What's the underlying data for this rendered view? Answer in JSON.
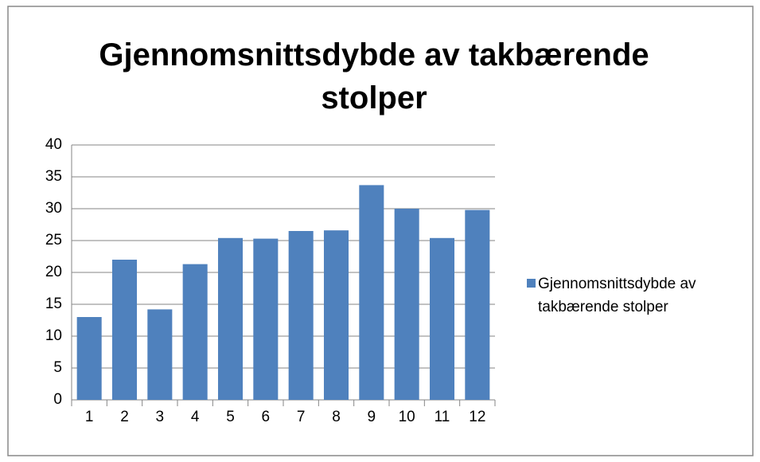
{
  "chart_data": {
    "type": "bar",
    "title": "Gjennomsnittsdybde av takbærende stolper",
    "categories": [
      "1",
      "2",
      "3",
      "4",
      "5",
      "6",
      "7",
      "8",
      "9",
      "10",
      "11",
      "12"
    ],
    "series": [
      {
        "name": "Gjennomsnittsdybde av takbærende stolper",
        "color": "#4f81bd",
        "values": [
          13,
          22,
          14.2,
          21.3,
          25.4,
          25.3,
          26.5,
          26.6,
          33.7,
          30,
          25.4,
          29.8
        ]
      }
    ],
    "ylim": [
      0,
      40
    ],
    "yticks": [
      0,
      5,
      10,
      15,
      20,
      25,
      30,
      35,
      40
    ],
    "grid": true,
    "legend": "right"
  }
}
